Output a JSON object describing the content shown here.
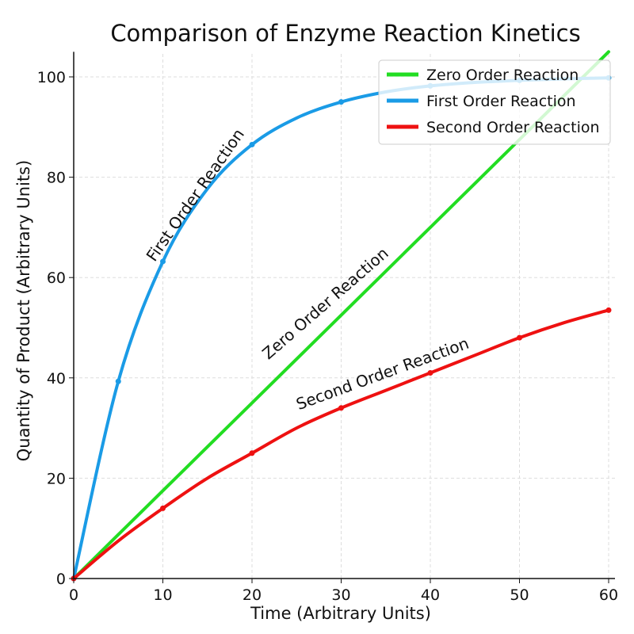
{
  "chart_data": {
    "type": "line",
    "title": "Comparison of Enzyme Reaction Kinetics",
    "xlabel": "Time (Arbitrary Units)",
    "ylabel": "Quantity of Product (Arbitrary Units)",
    "xlim": [
      0,
      60
    ],
    "ylim": [
      0,
      105
    ],
    "xticks": [
      0,
      10,
      20,
      30,
      40,
      50,
      60
    ],
    "yticks": [
      0,
      20,
      40,
      60,
      80,
      100
    ],
    "grid": true,
    "legend_position": "top-right",
    "x": [
      0,
      5,
      10,
      15,
      20,
      25,
      30,
      35,
      40,
      45,
      50,
      55,
      60
    ],
    "series": [
      {
        "name": "Zero Order Reaction",
        "color": "#22dd22",
        "values": [
          0,
          8.75,
          17.5,
          26.25,
          35,
          43.75,
          52.5,
          61.25,
          70,
          78.75,
          87.5,
          96.25,
          105
        ],
        "markers": []
      },
      {
        "name": "First Order Reaction",
        "color": "#1a9be6",
        "values": [
          0,
          39.3,
          63.2,
          77.7,
          86.5,
          91.8,
          95,
          97,
          98.2,
          98.9,
          99.3,
          99.6,
          99.8
        ],
        "markers": [
          0,
          5,
          10,
          20,
          30,
          40,
          50,
          60
        ]
      },
      {
        "name": "Second Order Reaction",
        "color": "#ee1111",
        "values": [
          0,
          7.5,
          14,
          20,
          25,
          30,
          34,
          37.5,
          41,
          44.5,
          48,
          51,
          53.5
        ],
        "markers": [
          0,
          10,
          20,
          30,
          40,
          50,
          60
        ]
      }
    ],
    "annotations": [
      {
        "text": "First Order Reaction"
      },
      {
        "text": "Zero Order Reaction"
      },
      {
        "text": "Second Order Reaction"
      }
    ]
  }
}
